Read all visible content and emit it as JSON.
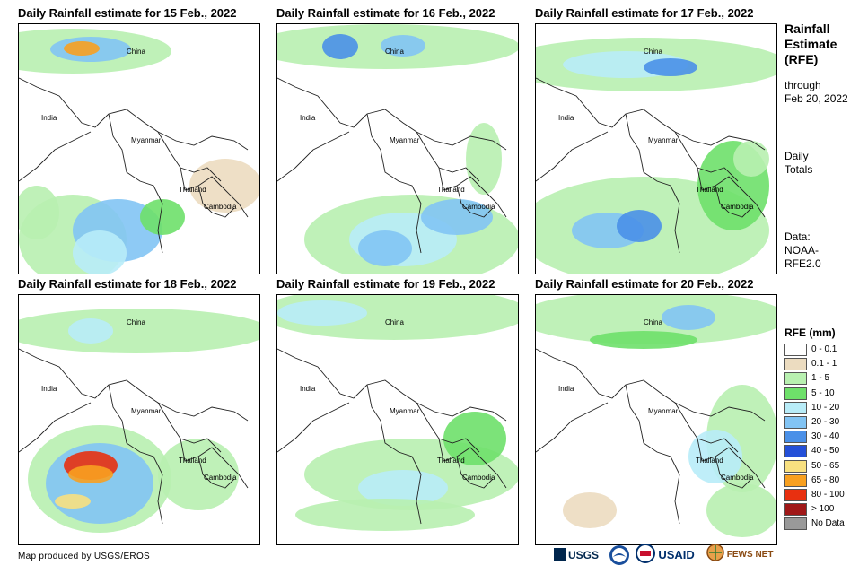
{
  "panels": [
    {
      "title": "Daily Rainfall estimate for 15 Feb., 2022"
    },
    {
      "title": "Daily Rainfall estimate for 16 Feb., 2022"
    },
    {
      "title": "Daily Rainfall estimate for 17 Feb., 2022"
    },
    {
      "title": "Daily Rainfall estimate for 18 Feb., 2022"
    },
    {
      "title": "Daily Rainfall estimate for 19 Feb., 2022"
    },
    {
      "title": "Daily Rainfall estimate for 20 Feb., 2022"
    }
  ],
  "map_labels": {
    "china": "China",
    "india": "India",
    "myanmar": "Myanmar",
    "thailand": "Thailand",
    "cambodia": "Cambodia"
  },
  "sidebar": {
    "title_line1": "Rainfall",
    "title_line2": "Estimate",
    "title_line3": "(RFE)",
    "through_line1": "through",
    "through_line2": "Feb 20, 2022",
    "daily_line1": "Daily",
    "daily_line2": "Totals",
    "data_line1": "Data:",
    "data_line2": "NOAA-",
    "data_line3": "RFE2.0"
  },
  "legend": {
    "title": "RFE (mm)",
    "items": [
      {
        "label": "0 - 0.1",
        "color": "#ffffff"
      },
      {
        "label": "0.1 - 1",
        "color": "#ecdcc0"
      },
      {
        "label": "1 - 5",
        "color": "#b8f0b0"
      },
      {
        "label": "5 - 10",
        "color": "#6ee06a"
      },
      {
        "label": "10 - 20",
        "color": "#b8ecf8"
      },
      {
        "label": "20 - 30",
        "color": "#82c4f4"
      },
      {
        "label": "30 - 40",
        "color": "#4a90e8"
      },
      {
        "label": "40 - 50",
        "color": "#2450d8"
      },
      {
        "label": "50 - 65",
        "color": "#f8e080"
      },
      {
        "label": "65 - 80",
        "color": "#f8a020"
      },
      {
        "label": "80 - 100",
        "color": "#e83010"
      },
      {
        "label": "> 100",
        "color": "#a01818"
      },
      {
        "label": "No Data",
        "color": "#999999"
      }
    ]
  },
  "footer": {
    "credit": "Map produced by USGS/EROS"
  },
  "logos": {
    "usgs": "USGS",
    "usaid": "USAID",
    "fewsnet": "FEWS NET"
  }
}
